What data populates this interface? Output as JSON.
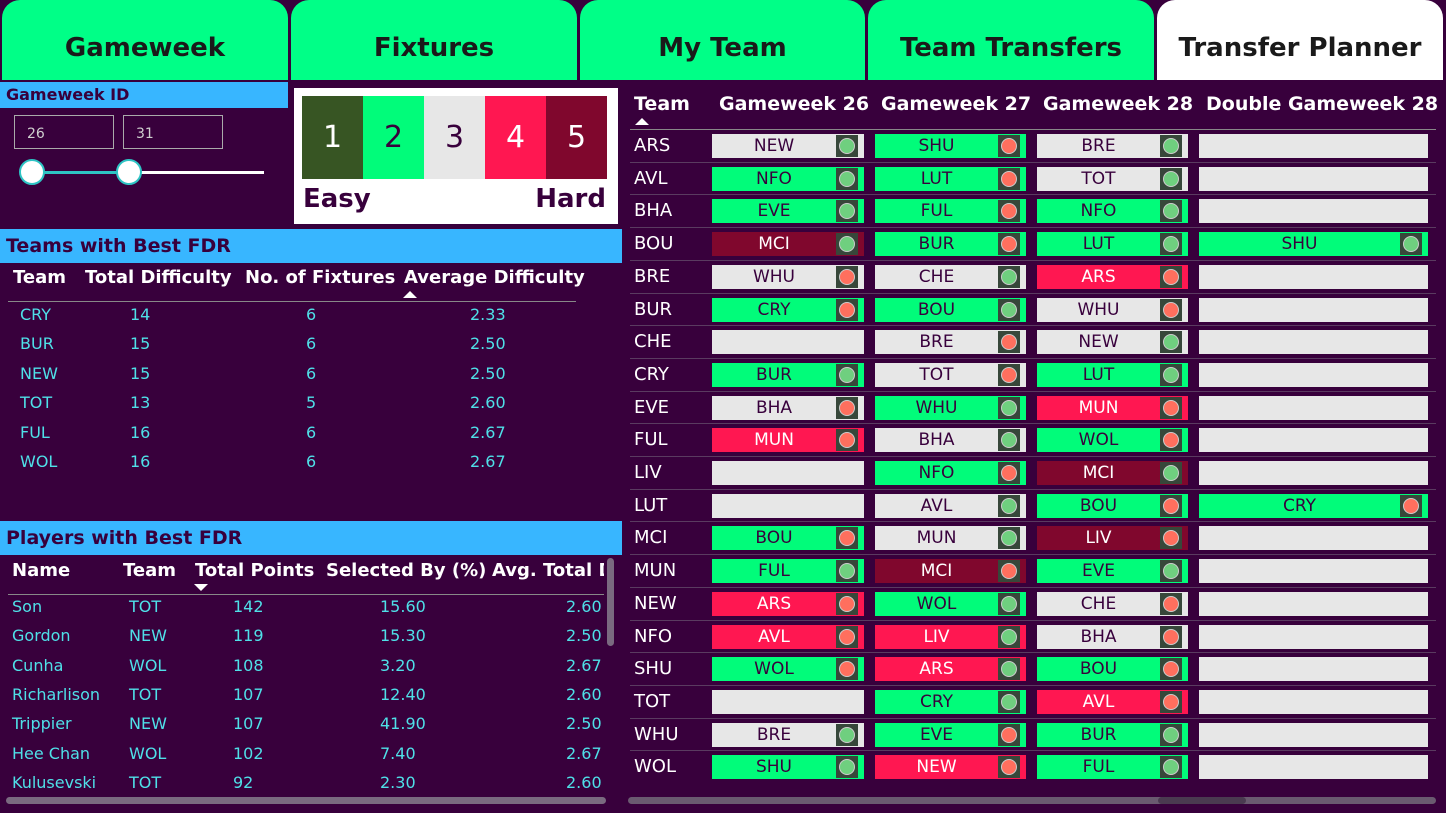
{
  "tabs": [
    {
      "label": "Gameweek",
      "active": false
    },
    {
      "label": "Fixtures",
      "active": false
    },
    {
      "label": "My Team",
      "active": false
    },
    {
      "label": "Team Transfers",
      "active": false
    },
    {
      "label": "Transfer Planner",
      "active": true
    }
  ],
  "gameweek_filter": {
    "title": "Gameweek ID",
    "min_value": "26",
    "max_value": "31"
  },
  "legend": {
    "levels": [
      "1",
      "2",
      "3",
      "4",
      "5"
    ],
    "easy_label": "Easy",
    "hard_label": "Hard",
    "colors": [
      "#375523",
      "#01fc7a",
      "#e7e7e7",
      "#ff1751",
      "#80072d"
    ]
  },
  "best_teams": {
    "title": "Teams with Best FDR",
    "columns": [
      "Team",
      "Total Difficulty",
      "No. of Fixtures",
      "Average Difficulty"
    ],
    "rows": [
      [
        "CRY",
        "14",
        "6",
        "2.33"
      ],
      [
        "BUR",
        "15",
        "6",
        "2.50"
      ],
      [
        "NEW",
        "15",
        "6",
        "2.50"
      ],
      [
        "TOT",
        "13",
        "5",
        "2.60"
      ],
      [
        "FUL",
        "16",
        "6",
        "2.67"
      ],
      [
        "WOL",
        "16",
        "6",
        "2.67"
      ]
    ]
  },
  "best_players": {
    "title": "Players with Best FDR",
    "columns": [
      "Name",
      "Team",
      "Total Points",
      "Selected By (%)",
      "Avg. Total Di"
    ],
    "rows": [
      [
        "Son",
        "TOT",
        "142",
        "15.60",
        "2.60"
      ],
      [
        "Gordon",
        "NEW",
        "119",
        "15.30",
        "2.50"
      ],
      [
        "Cunha",
        "WOL",
        "108",
        "3.20",
        "2.67"
      ],
      [
        "Richarlison",
        "TOT",
        "107",
        "12.40",
        "2.60"
      ],
      [
        "Trippier",
        "NEW",
        "107",
        "41.90",
        "2.50"
      ],
      [
        "Hee Chan",
        "WOL",
        "102",
        "7.40",
        "2.67"
      ],
      [
        "Kulusevski",
        "TOT",
        "92",
        "2.30",
        "2.60"
      ]
    ]
  },
  "planner": {
    "columns": [
      "Team",
      "Gameweek 26",
      "Gameweek 27",
      "Gameweek 28",
      "Double Gameweek 28"
    ],
    "rows": [
      {
        "team": "ARS",
        "fixtures": [
          [
            "NEW",
            3,
            "g"
          ],
          [
            "SHU",
            2,
            "r"
          ],
          [
            "BRE",
            3,
            "g"
          ],
          [
            "",
            0,
            ""
          ]
        ]
      },
      {
        "team": "AVL",
        "fixtures": [
          [
            "NFO",
            2,
            "g"
          ],
          [
            "LUT",
            2,
            "r"
          ],
          [
            "TOT",
            3,
            "g"
          ],
          [
            "",
            0,
            ""
          ]
        ]
      },
      {
        "team": "BHA",
        "fixtures": [
          [
            "EVE",
            2,
            "g"
          ],
          [
            "FUL",
            2,
            "r"
          ],
          [
            "NFO",
            2,
            "g"
          ],
          [
            "",
            0,
            ""
          ]
        ]
      },
      {
        "team": "BOU",
        "fixtures": [
          [
            "MCI",
            5,
            "g"
          ],
          [
            "BUR",
            2,
            "r"
          ],
          [
            "LUT",
            2,
            "g"
          ],
          [
            "SHU",
            2,
            "g"
          ]
        ]
      },
      {
        "team": "BRE",
        "fixtures": [
          [
            "WHU",
            3,
            "r"
          ],
          [
            "CHE",
            3,
            "g"
          ],
          [
            "ARS",
            4,
            "r"
          ],
          [
            "",
            0,
            ""
          ]
        ]
      },
      {
        "team": "BUR",
        "fixtures": [
          [
            "CRY",
            2,
            "r"
          ],
          [
            "BOU",
            2,
            "g"
          ],
          [
            "WHU",
            3,
            "r"
          ],
          [
            "",
            0,
            ""
          ]
        ]
      },
      {
        "team": "CHE",
        "fixtures": [
          [
            "",
            0,
            ""
          ],
          [
            "BRE",
            3,
            "r"
          ],
          [
            "NEW",
            3,
            "g"
          ],
          [
            "",
            0,
            ""
          ]
        ]
      },
      {
        "team": "CRY",
        "fixtures": [
          [
            "BUR",
            2,
            "g"
          ],
          [
            "TOT",
            3,
            "r"
          ],
          [
            "LUT",
            2,
            "g"
          ],
          [
            "",
            0,
            ""
          ]
        ]
      },
      {
        "team": "EVE",
        "fixtures": [
          [
            "BHA",
            3,
            "r"
          ],
          [
            "WHU",
            2,
            "g"
          ],
          [
            "MUN",
            4,
            "r"
          ],
          [
            "",
            0,
            ""
          ]
        ]
      },
      {
        "team": "FUL",
        "fixtures": [
          [
            "MUN",
            4,
            "r"
          ],
          [
            "BHA",
            3,
            "g"
          ],
          [
            "WOL",
            2,
            "r"
          ],
          [
            "",
            0,
            ""
          ]
        ]
      },
      {
        "team": "LIV",
        "fixtures": [
          [
            "",
            0,
            ""
          ],
          [
            "NFO",
            2,
            "r"
          ],
          [
            "MCI",
            5,
            "g"
          ],
          [
            "",
            0,
            ""
          ]
        ]
      },
      {
        "team": "LUT",
        "fixtures": [
          [
            "",
            0,
            ""
          ],
          [
            "AVL",
            3,
            "g"
          ],
          [
            "BOU",
            2,
            "r"
          ],
          [
            "CRY",
            2,
            "r"
          ]
        ]
      },
      {
        "team": "MCI",
        "fixtures": [
          [
            "BOU",
            2,
            "r"
          ],
          [
            "MUN",
            3,
            "g"
          ],
          [
            "LIV",
            5,
            "r"
          ],
          [
            "",
            0,
            ""
          ]
        ]
      },
      {
        "team": "MUN",
        "fixtures": [
          [
            "FUL",
            2,
            "g"
          ],
          [
            "MCI",
            5,
            "r"
          ],
          [
            "EVE",
            2,
            "g"
          ],
          [
            "",
            0,
            ""
          ]
        ]
      },
      {
        "team": "NEW",
        "fixtures": [
          [
            "ARS",
            4,
            "r"
          ],
          [
            "WOL",
            2,
            "g"
          ],
          [
            "CHE",
            3,
            "r"
          ],
          [
            "",
            0,
            ""
          ]
        ]
      },
      {
        "team": "NFO",
        "fixtures": [
          [
            "AVL",
            4,
            "r"
          ],
          [
            "LIV",
            4,
            "g"
          ],
          [
            "BHA",
            3,
            "r"
          ],
          [
            "",
            0,
            ""
          ]
        ]
      },
      {
        "team": "SHU",
        "fixtures": [
          [
            "WOL",
            2,
            "r"
          ],
          [
            "ARS",
            4,
            "g"
          ],
          [
            "BOU",
            2,
            "r"
          ],
          [
            "",
            0,
            ""
          ]
        ]
      },
      {
        "team": "TOT",
        "fixtures": [
          [
            "",
            0,
            ""
          ],
          [
            "CRY",
            2,
            "g"
          ],
          [
            "AVL",
            4,
            "r"
          ],
          [
            "",
            0,
            ""
          ]
        ]
      },
      {
        "team": "WHU",
        "fixtures": [
          [
            "BRE",
            3,
            "g"
          ],
          [
            "EVE",
            2,
            "r"
          ],
          [
            "BUR",
            2,
            "g"
          ],
          [
            "",
            0,
            ""
          ]
        ]
      },
      {
        "team": "WOL",
        "fixtures": [
          [
            "SHU",
            2,
            "g"
          ],
          [
            "NEW",
            4,
            "r"
          ],
          [
            "FUL",
            2,
            "g"
          ],
          [
            "",
            0,
            ""
          ]
        ]
      }
    ]
  }
}
